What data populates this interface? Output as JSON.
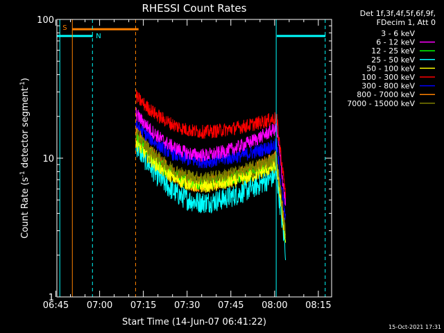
{
  "chart_data": {
    "type": "line",
    "title": "RHESSI Count Rates",
    "xlabel": "Start Time (14-Jun-07 06:41:22)",
    "ylabel_main": "Count Rate (s",
    "ylabel_exp1": "-1",
    "ylabel_mid": " detector segment",
    "ylabel_exp2": "-1",
    "ylabel_end": ")",
    "y_scale": "log",
    "ylim": [
      1,
      100
    ],
    "y_ticks": [
      {
        "value": 1,
        "label": "1"
      },
      {
        "value": 10,
        "label": "10"
      },
      {
        "value": 100,
        "label": "100"
      }
    ],
    "xlim_minutes": [
      6.8,
      101.0
    ],
    "x_ticks": [
      {
        "value": 6.45,
        "label": "06:45"
      },
      {
        "value": 21.45,
        "label": "07:00"
      },
      {
        "value": 36.45,
        "label": "07:15"
      },
      {
        "value": 51.45,
        "label": "07:30"
      },
      {
        "value": 66.45,
        "label": "07:45"
      },
      {
        "value": 81.45,
        "label": "08:00"
      },
      {
        "value": 96.45,
        "label": "08:15"
      }
    ],
    "legend_header": [
      "Det 1f,3f,4f,5f,6f,9f,",
      "FDecim 1, Att 0"
    ],
    "legend_placement": "right",
    "series": [
      {
        "name": "3 - 6 keV",
        "color": "#000000",
        "start": 14,
        "mid": 4.3,
        "endpeak": 9.6,
        "noise": 0.13
      },
      {
        "name": "6 - 12 keV",
        "color": "#ff00ff",
        "start": 21,
        "mid": 10.5,
        "endpeak": 16.5,
        "noise": 0.05
      },
      {
        "name": "12 - 25 keV",
        "color": "#00ff00",
        "start": 14,
        "mid": 6.6,
        "endpeak": 9.3,
        "noise": 0.05
      },
      {
        "name": "25 - 50 keV",
        "color": "#00ffff",
        "start": 12.5,
        "mid": 4.8,
        "endpeak": 7.6,
        "noise": 0.08
      },
      {
        "name": "50 - 100 keV",
        "color": "#ffff00",
        "start": 13,
        "mid": 6.3,
        "endpeak": 8.8,
        "noise": 0.05
      },
      {
        "name": "100 - 300 keV",
        "color": "#ff0000",
        "start": 28,
        "mid": 15.5,
        "endpeak": 19.5,
        "noise": 0.05
      },
      {
        "name": "300 - 800 keV",
        "color": "#0000ff",
        "start": 17.5,
        "mid": 9.5,
        "endpeak": 12.5,
        "noise": 0.05
      },
      {
        "name": "800 - 7000 keV",
        "color": "#ff8000",
        "start": 15.5,
        "mid": 6.5,
        "endpeak": 10,
        "noise": 0.06
      },
      {
        "name": "7000 - 15000 keV",
        "color": "#808000",
        "start": 15,
        "mid": 7.2,
        "endpeak": 10,
        "noise": 0.05
      }
    ],
    "data_window_minutes": [
      33.9,
      85.2
    ],
    "saa_label": "S",
    "night_label": "N",
    "saa_color": "#ff8000",
    "night_color": "#00ffff",
    "saa_level": 85,
    "night_level": 76,
    "saa_interval_minutes": [
      12.1,
      34.8
    ],
    "night_intervals_minutes": [
      [
        6.8,
        19.1
      ],
      [
        82.2,
        98.9
      ]
    ],
    "saa_boundaries_minutes": [
      12.1,
      33.8
    ],
    "night_boundaries_minutes": [
      7.8,
      19.0,
      82.0,
      98.8
    ]
  },
  "timestamp": "15-Oct-2021 17:31"
}
